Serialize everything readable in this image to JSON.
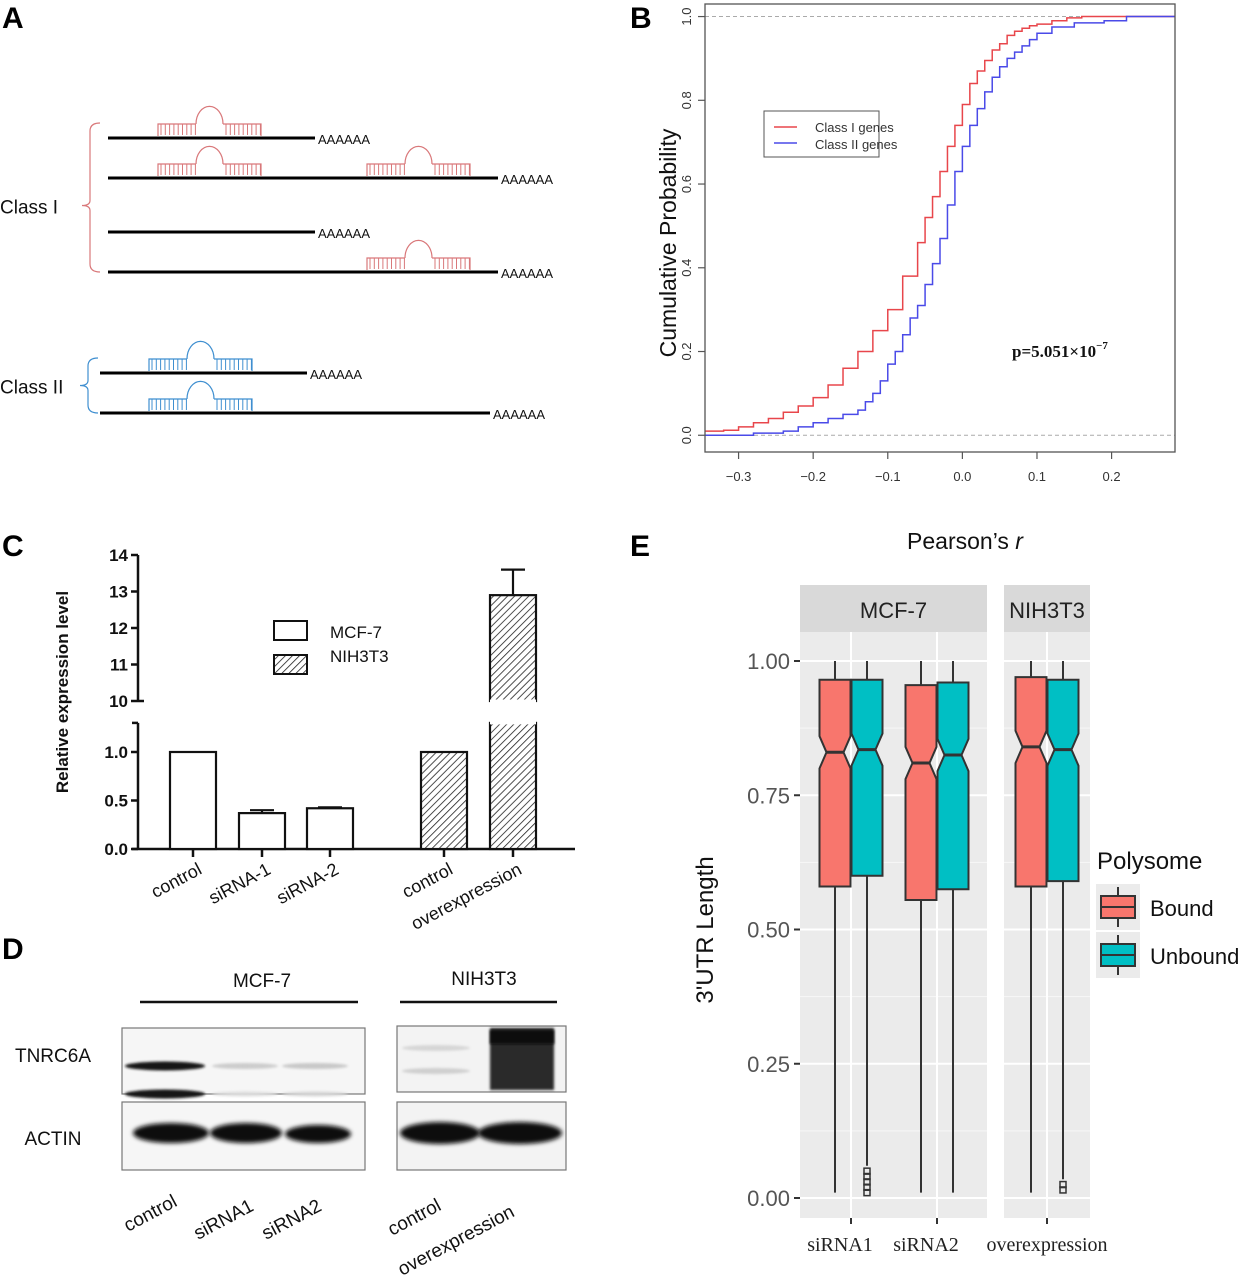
{
  "panels": {
    "A": {
      "letter": "A",
      "title": "",
      "classes": [
        {
          "label": "Class I",
          "color": "#d9787a",
          "transcripts": [
            {
              "length": "short",
              "polyA": "AAAAAA",
              "sites": [
                "near"
              ]
            },
            {
              "length": "long",
              "polyA": "AAAAAA",
              "sites": [
                "near",
                "far"
              ]
            },
            {
              "length": "short",
              "polyA": "AAAAAA",
              "sites": []
            },
            {
              "length": "long",
              "polyA": "AAAAAA",
              "sites": [
                "far"
              ]
            }
          ]
        },
        {
          "label": "Class II",
          "color": "#3f8fd0",
          "transcripts": [
            {
              "length": "short",
              "polyA": "AAAAAA",
              "sites": [
                "near"
              ]
            },
            {
              "length": "long",
              "polyA": "AAAAAA",
              "sites": [
                "near"
              ]
            }
          ]
        }
      ]
    },
    "B": {
      "letter": "B"
    },
    "C": {
      "letter": "C"
    },
    "D": {
      "letter": "D",
      "groups": [
        {
          "label": "MCF-7",
          "lanes": [
            "control",
            "siRNA1",
            "siRNA2"
          ]
        },
        {
          "label": "NIH3T3",
          "lanes": [
            "control",
            "overexpression"
          ]
        }
      ],
      "rows": [
        "TNRC6A",
        "ACTIN"
      ]
    },
    "E": {
      "letter": "E"
    }
  },
  "chart_data": [
    {
      "id": "B",
      "type": "line",
      "title": "",
      "xlabel": "Pearson’s ",
      "xlabel_italic": "r",
      "ylabel": "Cumulative Probability",
      "xlim": [
        -0.345,
        0.285
      ],
      "ylim": [
        -0.04,
        1.03
      ],
      "xticks": [
        -0.3,
        -0.2,
        -0.1,
        0.0,
        0.1,
        0.2
      ],
      "xtick_labels": [
        "−0.3",
        "−0.2",
        "−0.1",
        "0.0",
        "0.1",
        "0.2"
      ],
      "yticks": [
        0.0,
        0.2,
        0.4,
        0.6,
        0.8,
        1.0
      ],
      "ytick_labels": [
        "0.0",
        "0.2",
        "0.4",
        "0.6",
        "0.8",
        "1.0"
      ],
      "hlines": [
        0.0,
        1.0
      ],
      "legend": {
        "placement": "upper-left",
        "entries": [
          "Class I genes",
          "Class II genes"
        ]
      },
      "annotation": {
        "text": "p=5.051×10",
        "superscript": "−7",
        "x": 0.03,
        "y": 0.26
      },
      "series": [
        {
          "name": "Class I genes",
          "color": "#e8464b",
          "x": [
            -0.345,
            -0.32,
            -0.3,
            -0.28,
            -0.26,
            -0.24,
            -0.22,
            -0.2,
            -0.18,
            -0.16,
            -0.14,
            -0.12,
            -0.1,
            -0.08,
            -0.06,
            -0.05,
            -0.04,
            -0.03,
            -0.02,
            -0.01,
            0.0,
            0.01,
            0.02,
            0.03,
            0.04,
            0.05,
            0.06,
            0.07,
            0.08,
            0.09,
            0.1,
            0.12,
            0.14,
            0.16,
            0.2,
            0.285
          ],
          "y": [
            0.01,
            0.012,
            0.02,
            0.03,
            0.04,
            0.055,
            0.07,
            0.09,
            0.12,
            0.16,
            0.2,
            0.25,
            0.3,
            0.38,
            0.46,
            0.52,
            0.57,
            0.63,
            0.69,
            0.74,
            0.79,
            0.84,
            0.87,
            0.895,
            0.92,
            0.935,
            0.955,
            0.965,
            0.972,
            0.978,
            0.982,
            0.99,
            0.997,
            1.0,
            1.0,
            1.0
          ]
        },
        {
          "name": "Class II genes",
          "color": "#4a4ae8",
          "x": [
            -0.345,
            -0.3,
            -0.28,
            -0.26,
            -0.24,
            -0.22,
            -0.2,
            -0.18,
            -0.16,
            -0.14,
            -0.13,
            -0.12,
            -0.11,
            -0.1,
            -0.09,
            -0.08,
            -0.07,
            -0.06,
            -0.05,
            -0.04,
            -0.03,
            -0.02,
            -0.01,
            0.0,
            0.01,
            0.02,
            0.03,
            0.04,
            0.05,
            0.06,
            0.07,
            0.08,
            0.09,
            0.1,
            0.12,
            0.15,
            0.19,
            0.22,
            0.285
          ],
          "y": [
            0.0,
            0.0,
            0.005,
            0.005,
            0.01,
            0.02,
            0.03,
            0.04,
            0.05,
            0.06,
            0.08,
            0.1,
            0.13,
            0.17,
            0.2,
            0.24,
            0.28,
            0.31,
            0.36,
            0.41,
            0.47,
            0.55,
            0.63,
            0.69,
            0.74,
            0.78,
            0.82,
            0.855,
            0.88,
            0.9,
            0.915,
            0.93,
            0.945,
            0.96,
            0.975,
            0.985,
            0.99,
            1.0,
            1.0
          ]
        }
      ]
    },
    {
      "id": "C",
      "type": "bar",
      "title": "",
      "xlabel": "",
      "ylabel": "Relative expression level",
      "axis_break": {
        "lower": [
          0.0,
          1.3
        ],
        "upper": [
          10,
          14
        ]
      },
      "lower_yticks": [
        0.0,
        0.5,
        1.0
      ],
      "lower_ytick_labels": [
        "0.0",
        "0.5",
        "1.0"
      ],
      "upper_yticks": [
        10,
        11,
        12,
        13,
        14
      ],
      "upper_ytick_labels": [
        "10",
        "11",
        "12",
        "13",
        "14"
      ],
      "categories": [
        "control",
        "siRNA-1",
        "siRNA-2",
        "control",
        "overexpression"
      ],
      "legend": {
        "placement": "top-center",
        "entries": [
          {
            "name": "MCF-7",
            "fill": "open"
          },
          {
            "name": "NIH3T3",
            "fill": "hatched"
          }
        ]
      },
      "bars": [
        {
          "category": "control",
          "group": "MCF-7",
          "value": 1.0,
          "error": 0.0
        },
        {
          "category": "siRNA-1",
          "group": "MCF-7",
          "value": 0.37,
          "error": 0.03
        },
        {
          "category": "siRNA-2",
          "group": "MCF-7",
          "value": 0.42,
          "error": 0.01
        },
        {
          "category": "control",
          "group": "NIH3T3",
          "value": 1.0,
          "error": 0.0
        },
        {
          "category": "overexpression",
          "group": "NIH3T3",
          "value": 12.9,
          "error": 0.7
        }
      ]
    },
    {
      "id": "E",
      "type": "box",
      "title": "",
      "xlabel": "",
      "ylabel": "3'UTR Length",
      "ylim": [
        -0.04,
        1.04
      ],
      "yticks": [
        0.0,
        0.25,
        0.5,
        0.75,
        1.0
      ],
      "ytick_labels": [
        "0.00",
        "0.25",
        "0.50",
        "0.75",
        "1.00"
      ],
      "facets": [
        {
          "label": "MCF-7",
          "categories": [
            "siRNA1",
            "siRNA2"
          ]
        },
        {
          "label": "NIH3T3",
          "categories": [
            "overexpression"
          ]
        }
      ],
      "legend": {
        "title": "Polysome",
        "placement": "right",
        "entries": [
          {
            "name": "Bound",
            "color": "#f8766d"
          },
          {
            "name": "Unbound",
            "color": "#00bfc4"
          }
        ]
      },
      "boxes": [
        {
          "category": "siRNA1",
          "group": "Bound",
          "min": 0.01,
          "q1": 0.58,
          "median": 0.83,
          "q3": 0.965,
          "max": 1.0,
          "outliers": []
        },
        {
          "category": "siRNA1",
          "group": "Unbound",
          "min": 0.06,
          "q1": 0.6,
          "median": 0.835,
          "q3": 0.965,
          "max": 1.0,
          "outliers": [
            0.01,
            0.02,
            0.03,
            0.04,
            0.05
          ]
        },
        {
          "category": "siRNA2",
          "group": "Bound",
          "min": 0.01,
          "q1": 0.555,
          "median": 0.81,
          "q3": 0.955,
          "max": 1.0,
          "outliers": []
        },
        {
          "category": "siRNA2",
          "group": "Unbound",
          "min": 0.01,
          "q1": 0.575,
          "median": 0.825,
          "q3": 0.96,
          "max": 1.0,
          "outliers": []
        },
        {
          "category": "overexpression",
          "group": "Bound",
          "min": 0.01,
          "q1": 0.58,
          "median": 0.84,
          "q3": 0.97,
          "max": 1.0,
          "outliers": []
        },
        {
          "category": "overexpression",
          "group": "Unbound",
          "min": 0.035,
          "q1": 0.59,
          "median": 0.835,
          "q3": 0.965,
          "max": 1.0,
          "outliers": [
            0.015,
            0.025
          ]
        }
      ]
    }
  ]
}
